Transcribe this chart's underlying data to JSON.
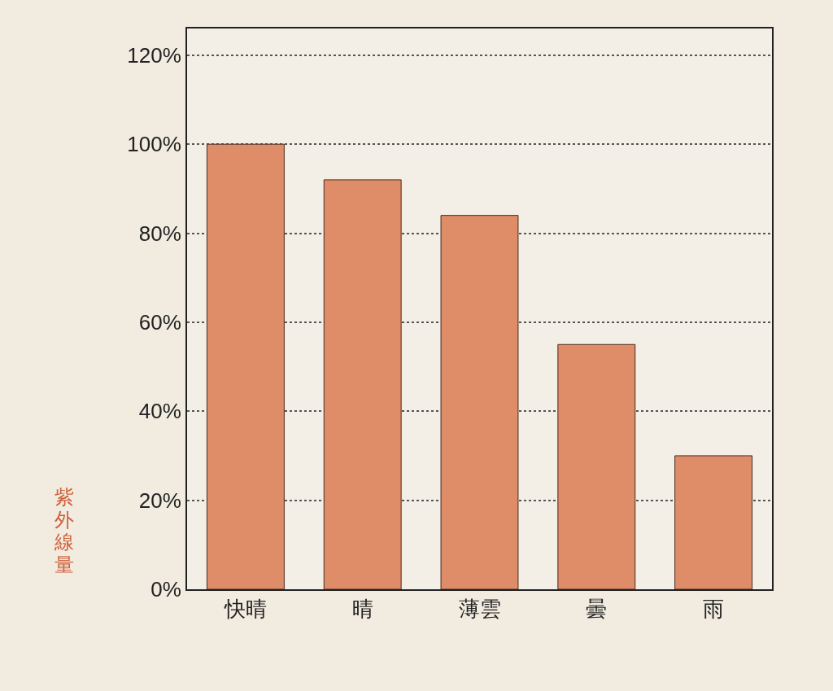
{
  "chart_data": {
    "type": "bar",
    "ylabel": "紫外線量",
    "categories": [
      "快晴",
      "晴",
      "薄雲",
      "曇",
      "雨"
    ],
    "values": [
      100,
      92,
      84,
      55,
      30
    ],
    "color": "#de8d68",
    "ylim": [
      0,
      126
    ],
    "yticks": [
      {
        "value": 0,
        "label": "0%"
      },
      {
        "value": 20,
        "label": "20%"
      },
      {
        "value": 40,
        "label": "40%"
      },
      {
        "value": 60,
        "label": "60%"
      },
      {
        "value": 80,
        "label": "80%"
      },
      {
        "value": 100,
        "label": "100%"
      },
      {
        "value": 120,
        "label": "120%"
      }
    ],
    "grid": "y"
  }
}
